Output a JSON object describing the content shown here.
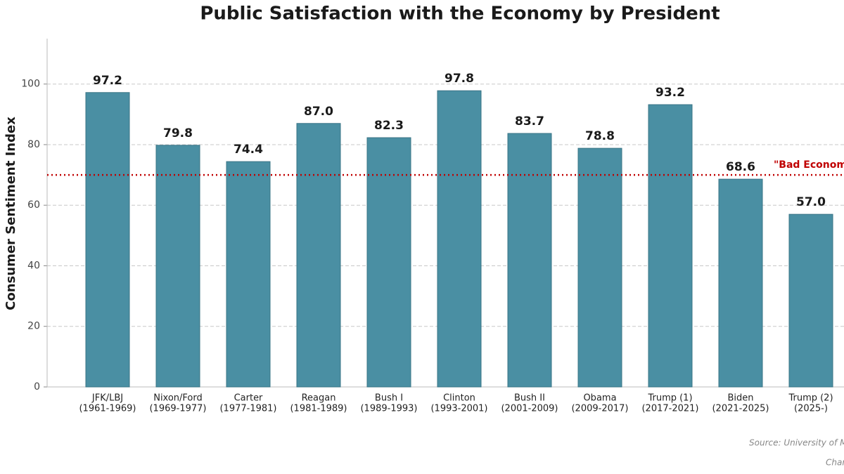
{
  "chart_data": {
    "type": "bar",
    "title": "Public Satisfaction with the Economy by President",
    "y_label": "Consumer Sentiment Index",
    "categories": [
      "JFK/LBJ",
      "Nixon/Ford",
      "Carter",
      "Reagan",
      "Bush I",
      "Clinton",
      "Bush II",
      "Obama",
      "Trump (1)",
      "Biden",
      "Trump (2)"
    ],
    "category_periods": [
      "(1961-1969)",
      "(1969-1977)",
      "(1977-1981)",
      "(1981-1989)",
      "(1989-1993)",
      "(1993-2001)",
      "(2001-2009)",
      "(2009-2017)",
      "(2017-2021)",
      "(2021-2025)",
      "(2025-)"
    ],
    "values": [
      97.2,
      79.8,
      74.4,
      87.0,
      82.3,
      97.8,
      83.7,
      78.8,
      93.2,
      68.6,
      57.0
    ],
    "value_labels": [
      "97.2",
      "79.8",
      "74.4",
      "87.0",
      "82.3",
      "97.8",
      "83.7",
      "78.8",
      "93.2",
      "68.6",
      "57.0"
    ],
    "color": "#4a8fa3",
    "ylim": [
      0,
      115
    ],
    "yticks": [
      0,
      20,
      40,
      60,
      80,
      100
    ],
    "grid": true,
    "reference_line": {
      "value": 70,
      "label": "\"Bad Econom",
      "color": "#c00000"
    },
    "source": "Source: University of M",
    "credit": "Char"
  }
}
